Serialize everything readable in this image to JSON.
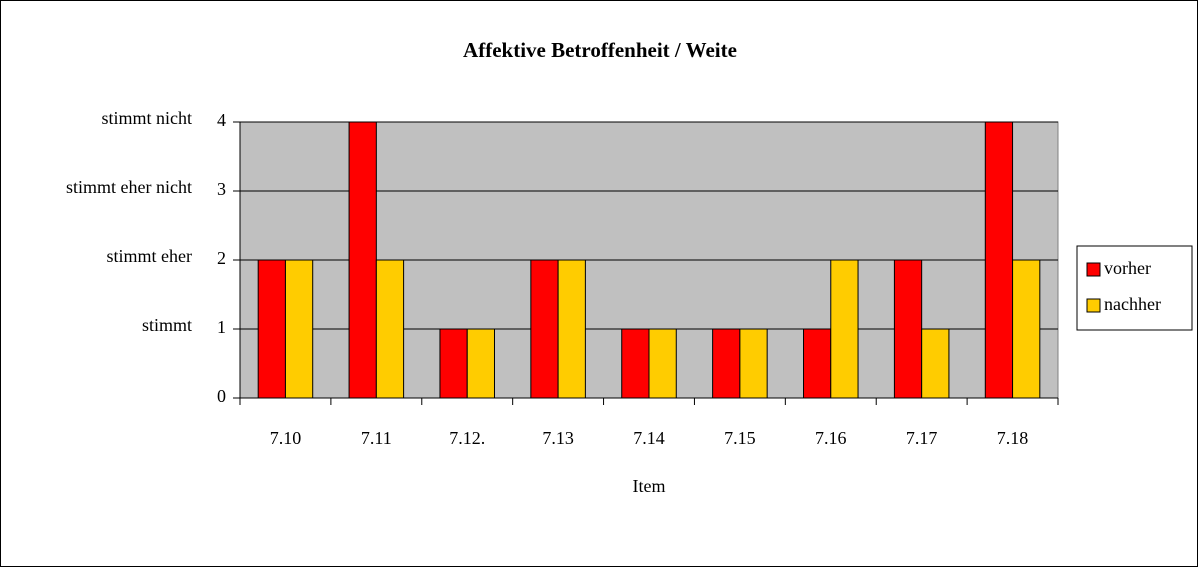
{
  "chart_data": {
    "type": "bar",
    "title": "Affektive Betroffenheit / Weite",
    "categories": [
      "7.10",
      "7.11",
      "7.12.",
      "7.13",
      "7.14",
      "7.15",
      "7.16",
      "7.17",
      "7.18"
    ],
    "series": [
      {
        "name": "vorher",
        "color": "#ff0000",
        "values": [
          2,
          4,
          1,
          2,
          1,
          1,
          1,
          2,
          4
        ]
      },
      {
        "name": "nachher",
        "color": "#ffcc00",
        "values": [
          2,
          2,
          1,
          2,
          1,
          1,
          2,
          1,
          2
        ]
      }
    ],
    "ylim": [
      0,
      4
    ],
    "yticks": [
      0,
      1,
      2,
      3,
      4
    ],
    "y_level_labels": [
      {
        "value": 1,
        "label": "stimmt"
      },
      {
        "value": 2,
        "label": "stimmt eher"
      },
      {
        "value": 3,
        "label": "stimmt eher nicht"
      },
      {
        "value": 4,
        "label": "stimmt nicht"
      }
    ],
    "xlabel": "Item",
    "grid": true,
    "legend": "right",
    "plot_background": "#c0c0c0"
  }
}
